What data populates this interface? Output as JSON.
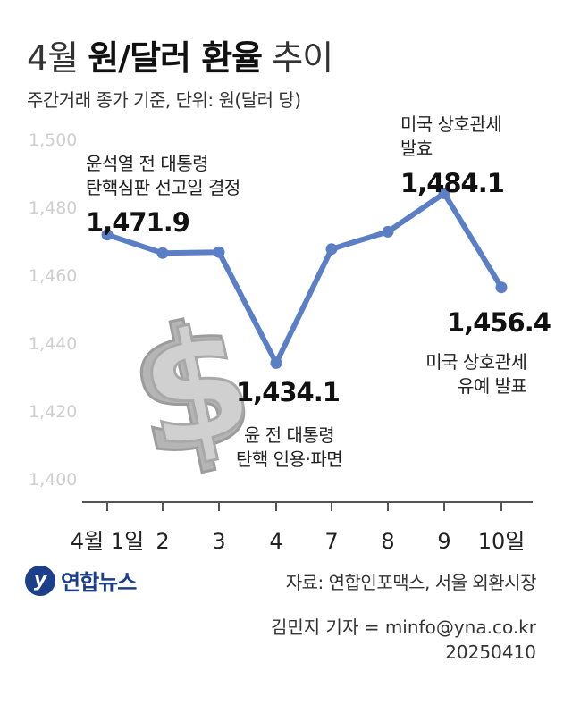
{
  "header": {
    "title_light": "4월",
    "title_bold": "원/달러 환율",
    "title_light2": "추이",
    "subtitle": "주간거래 종가 기준, 단위: 원(달러 당)"
  },
  "chart_data": {
    "type": "line",
    "title": "4월 원/달러 환율 추이",
    "subtitle": "주간거래 종가 기준, 단위: 원(달러 당)",
    "categories": [
      "4월 1일",
      "2",
      "3",
      "4",
      "7",
      "8",
      "9",
      "10일"
    ],
    "series": [
      {
        "values": [
          1471.9,
          1466.5,
          1466.8,
          1434.1,
          1467.7,
          1472.8,
          1484.1,
          1456.4
        ]
      }
    ],
    "ylim": [
      1400,
      1500
    ],
    "yticks": [
      "1,400",
      "1,420",
      "1,440",
      "1,460",
      "1,480",
      "1,500"
    ],
    "grid": false,
    "line_color": "#5b7fc4",
    "annotations": {
      "p0": {
        "lines": [
          "윤석열 전 대통령",
          "탄핵심판 선고일 결정"
        ],
        "value": "1,471.9"
      },
      "p3": {
        "value": "1,434.1",
        "lines": [
          "윤 전 대통령",
          "탄핵 인용·파면"
        ]
      },
      "p6": {
        "lines": [
          "미국 상호관세",
          "발효"
        ],
        "value": "1,484.1"
      },
      "p7": {
        "value": "1,456.4",
        "lines": [
          "미국 상호관세",
          "유예 발표"
        ]
      }
    }
  },
  "footer": {
    "logo_mark": "y",
    "logo_text": "연합뉴스",
    "source": "자료: 연합인포맥스, 서울 외환시장",
    "byline": "김민지 기자 = minfo@yna.co.kr",
    "date": "20250410"
  },
  "colors": {
    "line": "#5b7fc4",
    "axis_label": "#cfcfcf",
    "logo": "#1d3f8a"
  },
  "icons": {
    "background": "dollar-sign-icon"
  }
}
